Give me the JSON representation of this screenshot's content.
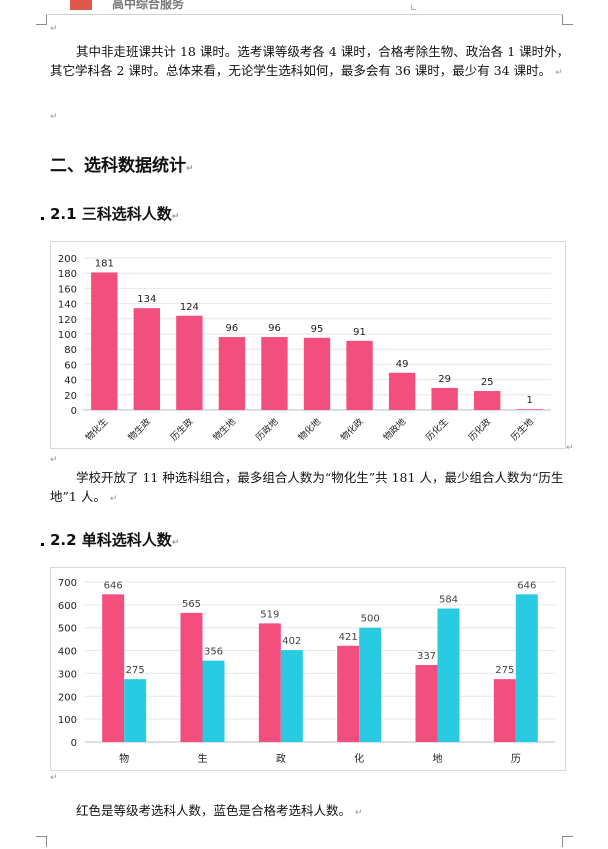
{
  "header": {
    "text": "高中综合服务",
    "corner_mark": "∟"
  },
  "paragraphs": {
    "p1": "其中非走班课共计 18 课时。选考课等级考各 4 课时，合格考除生物、政治各 1 课时外，其它学科各 2 课时。总体来看，无论学生选科如何，最多会有 36 课时，最少有 34 课时。",
    "p2": "学校开放了 11 种选科组合，最多组合人数为“物化生”共 181 人，最少组合人数为“历生地”1 人。",
    "p3": "红色是等级考选科人数，蓝色是合格考选科人数。"
  },
  "headings": {
    "section2": "二、选科数据统计",
    "s21": "2.1 三科选科人数",
    "s22": "2.2 单科选科人数"
  },
  "para_mark": "↵",
  "colors": {
    "pink": "#f24f7e",
    "cyan": "#29cbe3"
  },
  "chart_data": [
    {
      "type": "bar",
      "categories": [
        "物化生",
        "物生政",
        "历生政",
        "物生地",
        "历政地",
        "物化地",
        "物化政",
        "物政地",
        "历化生",
        "历化政",
        "历生地"
      ],
      "values": [
        181,
        134,
        124,
        96,
        96,
        95,
        91,
        49,
        29,
        25,
        1
      ],
      "ylim": [
        0,
        200
      ],
      "yticks": [
        0,
        20,
        40,
        60,
        80,
        100,
        120,
        140,
        160,
        180,
        200
      ],
      "grid": true
    },
    {
      "type": "bar",
      "categories": [
        "物",
        "生",
        "政",
        "化",
        "地",
        "历"
      ],
      "series": [
        {
          "values": [
            646,
            565,
            519,
            421,
            337,
            275
          ],
          "color": "#f24f7e"
        },
        {
          "values": [
            275,
            356,
            402,
            500,
            584,
            646
          ],
          "color": "#29cbe3"
        }
      ],
      "ylim": [
        0,
        700
      ],
      "yticks": [
        0,
        100,
        200,
        300,
        400,
        500,
        600,
        700
      ],
      "grid": true
    }
  ]
}
